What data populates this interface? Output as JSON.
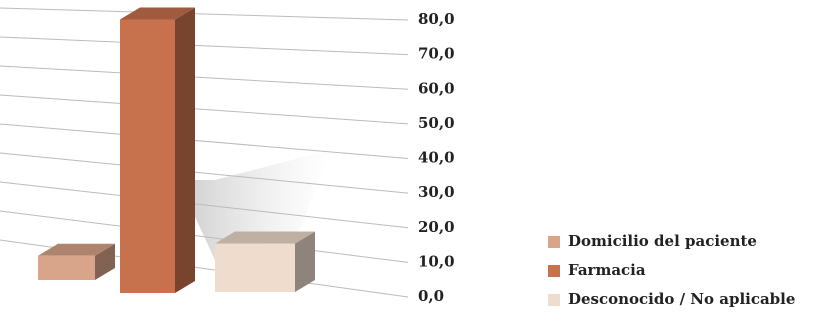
{
  "chart_data": {
    "type": "bar",
    "categories": [
      "Domicilio del paciente",
      "Farmacia",
      "Desconocido / No aplicable"
    ],
    "values": [
      7,
      79,
      14
    ],
    "colors": [
      "#d9a58a",
      "#c8714d",
      "#efdccd"
    ],
    "ylim": [
      0,
      80
    ],
    "yticks": [
      {
        "value": 0,
        "label": "0,0"
      },
      {
        "value": 10,
        "label": "10,0"
      },
      {
        "value": 20,
        "label": "20,0"
      },
      {
        "value": 30,
        "label": "30,0"
      },
      {
        "value": 40,
        "label": "40,0"
      },
      {
        "value": 50,
        "label": "50,0"
      },
      {
        "value": 60,
        "label": "60,0"
      },
      {
        "value": 70,
        "label": "70,0"
      },
      {
        "value": 80,
        "label": "80,0"
      }
    ],
    "grid": true
  }
}
